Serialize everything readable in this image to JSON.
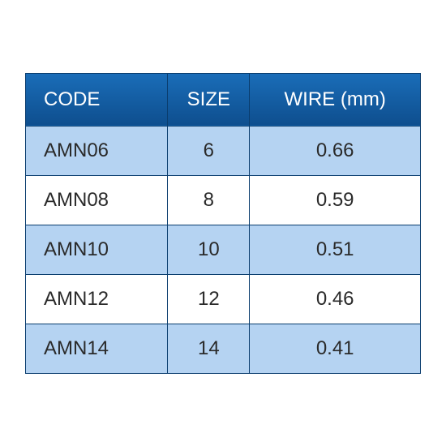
{
  "table": {
    "columns": [
      {
        "label": "CODE",
        "class": "col-code",
        "width": "36%",
        "align": "left"
      },
      {
        "label": "SIZE",
        "class": "col-size",
        "width": "26%",
        "align": "center"
      },
      {
        "label": "WIRE (mm)",
        "class": "col-wire",
        "width": "38%",
        "align": "center"
      }
    ],
    "rows": [
      [
        "AMN06",
        "6",
        "0.66"
      ],
      [
        "AMN08",
        "8",
        "0.59"
      ],
      [
        "AMN10",
        "10",
        "0.51"
      ],
      [
        "AMN12",
        "12",
        "0.46"
      ],
      [
        "AMN14",
        "14",
        "0.41"
      ]
    ],
    "header_gradient_top": "#1a6db8",
    "header_gradient_bottom": "#0e4e8e",
    "header_text_color": "#ffffff",
    "border_color": "#0a3d6e",
    "row_odd_bg": "#b5d3f2",
    "row_even_bg": "#ffffff",
    "cell_text_color": "#2a2a2a",
    "header_fontsize": 24,
    "cell_fontsize": 24,
    "font_family": "Segoe UI"
  }
}
